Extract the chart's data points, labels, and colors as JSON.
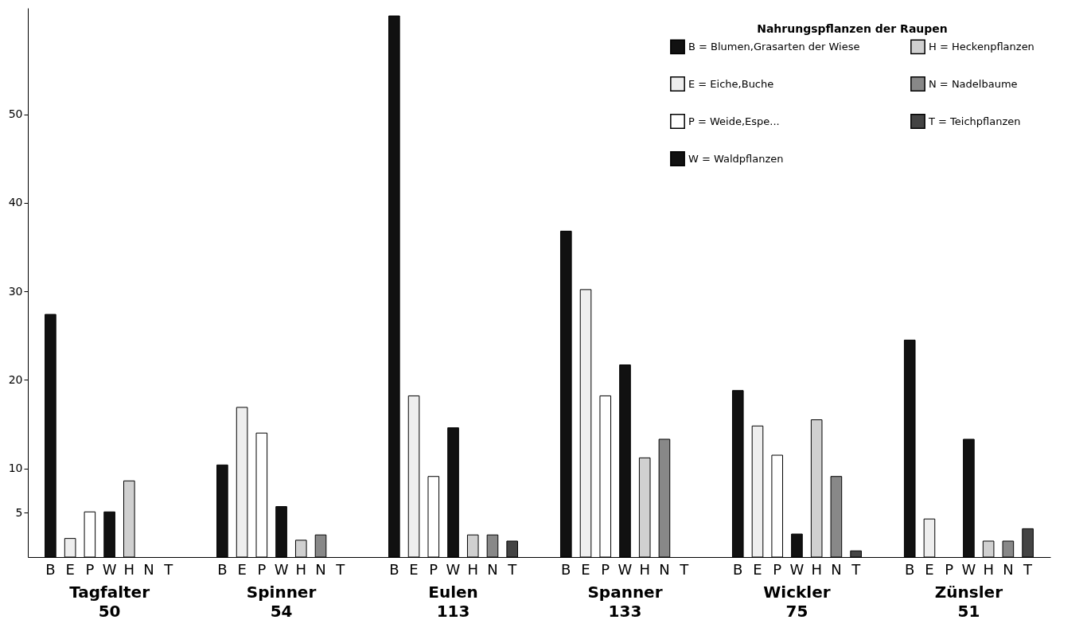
{
  "chart_data": {
    "type": "bar",
    "legend_title": "Nahrungspflanzen der Raupen",
    "categories": [
      "Tagfalter\n50",
      "Spinner\n54",
      "Eulen\n113",
      "Spanner\n133",
      "Wickler\n75",
      "Zünsler\n51"
    ],
    "series": [
      {
        "name": "B = Blumen,Grasarten der Wiese",
        "color": "#111111",
        "values": [
          27.4,
          10.4,
          61.1,
          36.8,
          18.8,
          24.5
        ]
      },
      {
        "name": "E = Eiche,Buche",
        "color": "#eeeeee",
        "values": [
          2.1,
          16.9,
          18.2,
          30.2,
          14.8,
          4.3
        ]
      },
      {
        "name": "P = Weide,Espe...",
        "color": "#ffffff",
        "values": [
          5.1,
          14.0,
          9.1,
          18.2,
          11.5,
          null
        ]
      },
      {
        "name": "W = Waldpflanzen",
        "color": "#111111",
        "values": [
          5.1,
          5.7,
          14.6,
          21.7,
          2.6,
          13.3
        ]
      },
      {
        "name": "H = Heckenpflanzen",
        "color": "#d0d0d0",
        "values": [
          8.6,
          1.9,
          2.5,
          11.2,
          15.5,
          1.8
        ]
      },
      {
        "name": "N = Nadelbaume",
        "color": "#888888",
        "values": [
          null,
          2.5,
          2.5,
          13.3,
          9.1,
          1.8
        ]
      },
      {
        "name": "T = Teichpflanzen",
        "color": "#444444",
        "values": [
          null,
          null,
          1.8,
          null,
          0.7,
          3.2
        ]
      }
    ],
    "annotations": [
      "B",
      "E",
      "P",
      "W",
      "H",
      "N",
      "T"
    ],
    "ylim": [
      0,
      62
    ],
    "yticks": [
      5,
      10,
      20,
      30,
      40,
      50
    ],
    "grid": false,
    "legend": "top right"
  }
}
